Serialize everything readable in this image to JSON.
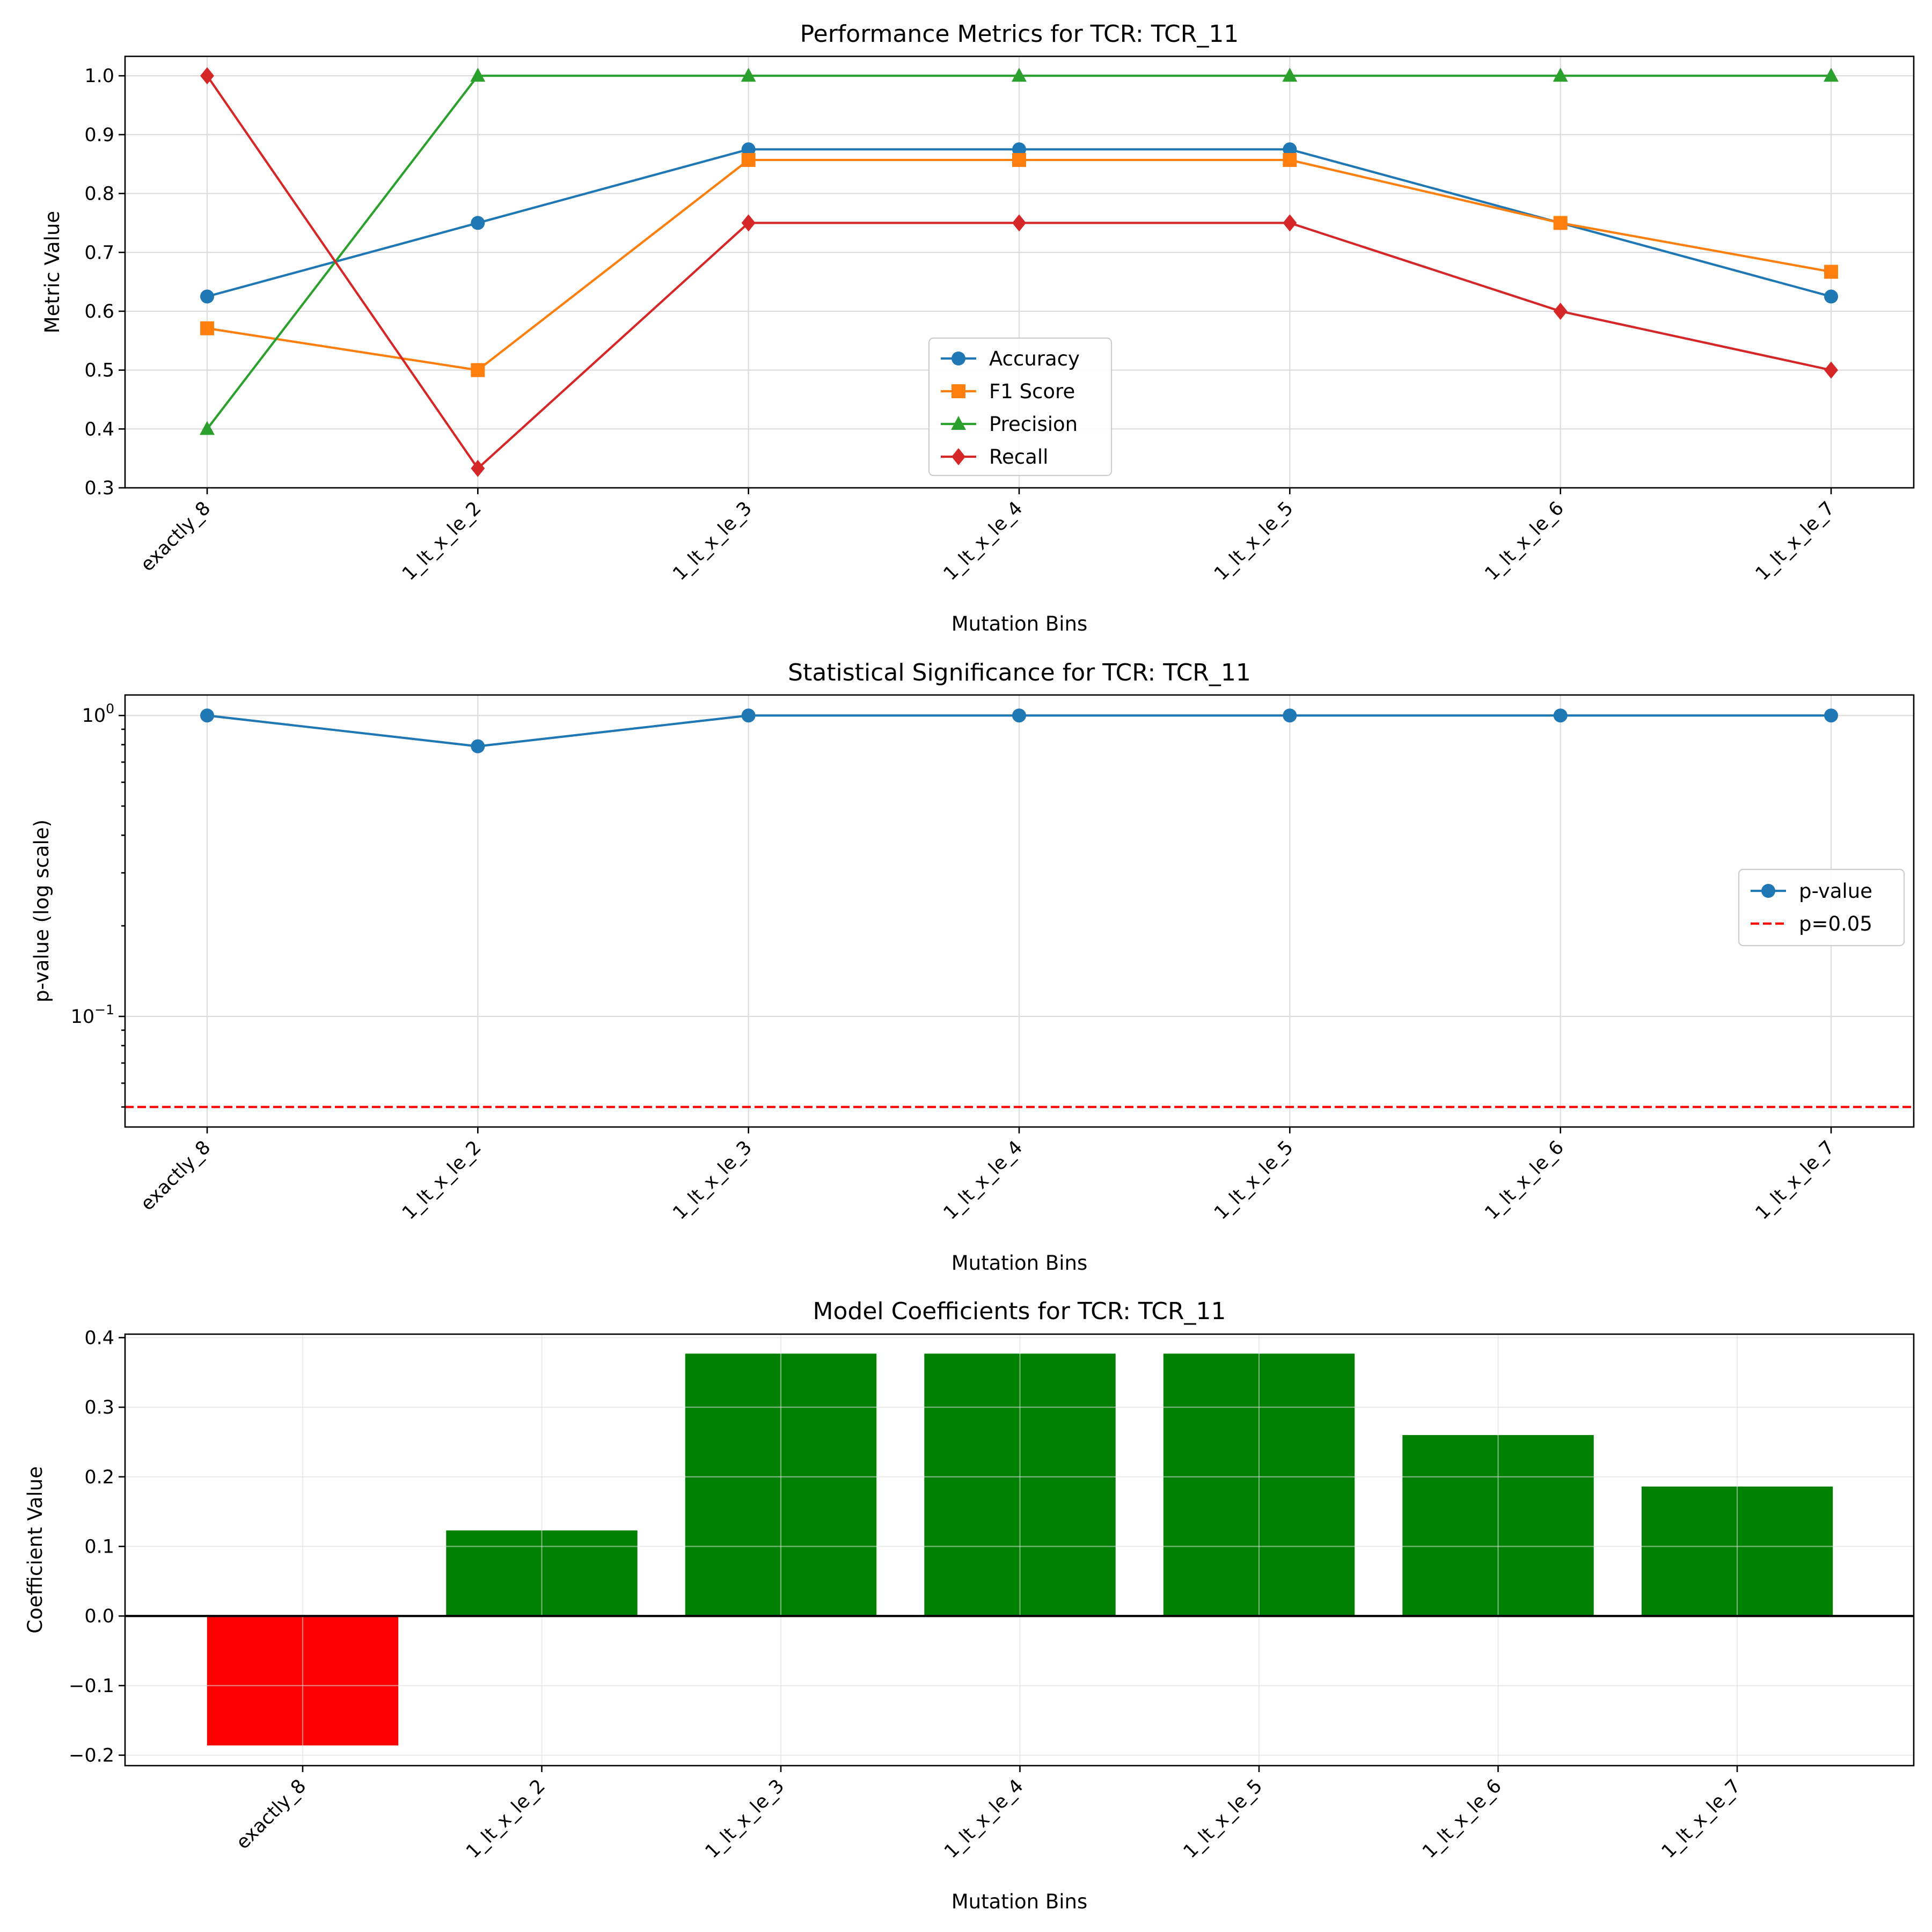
{
  "chart_data": [
    {
      "type": "line",
      "title": "Performance Metrics for TCR: TCR_11",
      "xlabel": "Mutation Bins",
      "ylabel": "Metric Value",
      "categories": [
        "exactly_8",
        "1_lt_x_le_2",
        "1_lt_x_le_3",
        "1_lt_x_le_4",
        "1_lt_x_le_5",
        "1_lt_x_le_6",
        "1_lt_x_le_7"
      ],
      "yticks": [
        "0.3",
        "0.4",
        "0.5",
        "0.6",
        "0.7",
        "0.8",
        "0.9",
        "1.0"
      ],
      "ylim": [
        0.3,
        1.033
      ],
      "grid": true,
      "legend_position": "lower-center",
      "series": [
        {
          "name": "Accuracy",
          "color": "#1f77b4",
          "marker": "circle",
          "values": [
            0.625,
            0.75,
            0.875,
            0.875,
            0.875,
            0.75,
            0.625
          ]
        },
        {
          "name": "F1 Score",
          "color": "#ff7f0e",
          "marker": "square",
          "values": [
            0.571,
            0.5,
            0.857,
            0.857,
            0.857,
            0.75,
            0.667
          ]
        },
        {
          "name": "Precision",
          "color": "#2ca02c",
          "marker": "triangle",
          "values": [
            0.4,
            1.0,
            1.0,
            1.0,
            1.0,
            1.0,
            1.0
          ]
        },
        {
          "name": "Recall",
          "color": "#d62728",
          "marker": "diamond",
          "values": [
            1.0,
            0.333,
            0.75,
            0.75,
            0.75,
            0.6,
            0.5
          ]
        }
      ]
    },
    {
      "type": "line",
      "title": "Statistical Significance for TCR: TCR_11",
      "xlabel": "Mutation Bins",
      "ylabel": "p-value (log scale)",
      "yscale": "log",
      "categories": [
        "exactly_8",
        "1_lt_x_le_2",
        "1_lt_x_le_3",
        "1_lt_x_le_4",
        "1_lt_x_le_5",
        "1_lt_x_le_6",
        "1_lt_x_le_7"
      ],
      "ytick_major": [
        {
          "base": "10",
          "exp": "−1",
          "value": 0.1
        },
        {
          "base": "10",
          "exp": "0",
          "value": 1.0
        }
      ],
      "ylim": [
        0.0429,
        1.17
      ],
      "grid": true,
      "legend_position": "center-right",
      "series": [
        {
          "name": "p-value",
          "color": "#1f77b4",
          "marker": "circle",
          "values": [
            1.0,
            0.79,
            1.0,
            1.0,
            1.0,
            1.0,
            1.0
          ]
        }
      ],
      "reference_line": {
        "name": "p=0.05",
        "value": 0.05,
        "color": "#ff0000",
        "style": "dashed"
      }
    },
    {
      "type": "bar",
      "title": "Model Coefficients for TCR: TCR_11",
      "xlabel": "Mutation Bins",
      "ylabel": "Coefficient Value",
      "categories": [
        "exactly_8",
        "1_lt_x_le_2",
        "1_lt_x_le_3",
        "1_lt_x_le_4",
        "1_lt_x_le_5",
        "1_lt_x_le_6",
        "1_lt_x_le_7"
      ],
      "values": [
        -0.186,
        0.123,
        0.377,
        0.377,
        0.377,
        0.26,
        0.186
      ],
      "yticks": [
        "−0.2",
        "−0.1",
        "0.0",
        "0.1",
        "0.2",
        "0.3",
        "0.4"
      ],
      "ylim": [
        -0.215,
        0.405
      ],
      "grid": true,
      "colors": {
        "positive": "#008000",
        "negative": "#ff0000"
      }
    }
  ]
}
